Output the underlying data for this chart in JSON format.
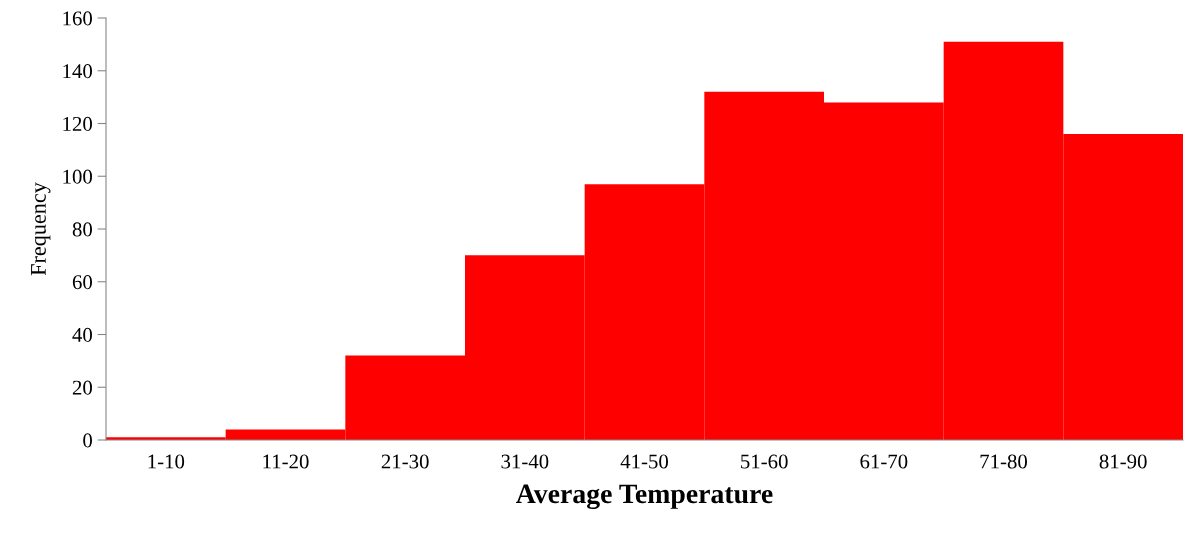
{
  "chart_data": {
    "type": "bar",
    "xlabel": "Average Temperature",
    "ylabel": "Frequency",
    "categories": [
      "1-10",
      "11-20",
      "21-30",
      "31-40",
      "41-50",
      "51-60",
      "61-70",
      "71-80",
      "81-90"
    ],
    "values": [
      1,
      4,
      32,
      70,
      97,
      132,
      128,
      151,
      116
    ],
    "color": "#ff0000",
    "ylim": [
      0,
      160
    ],
    "yticks": [
      0,
      20,
      40,
      60,
      80,
      100,
      120,
      140,
      160
    ],
    "grid": false,
    "legend": false
  }
}
